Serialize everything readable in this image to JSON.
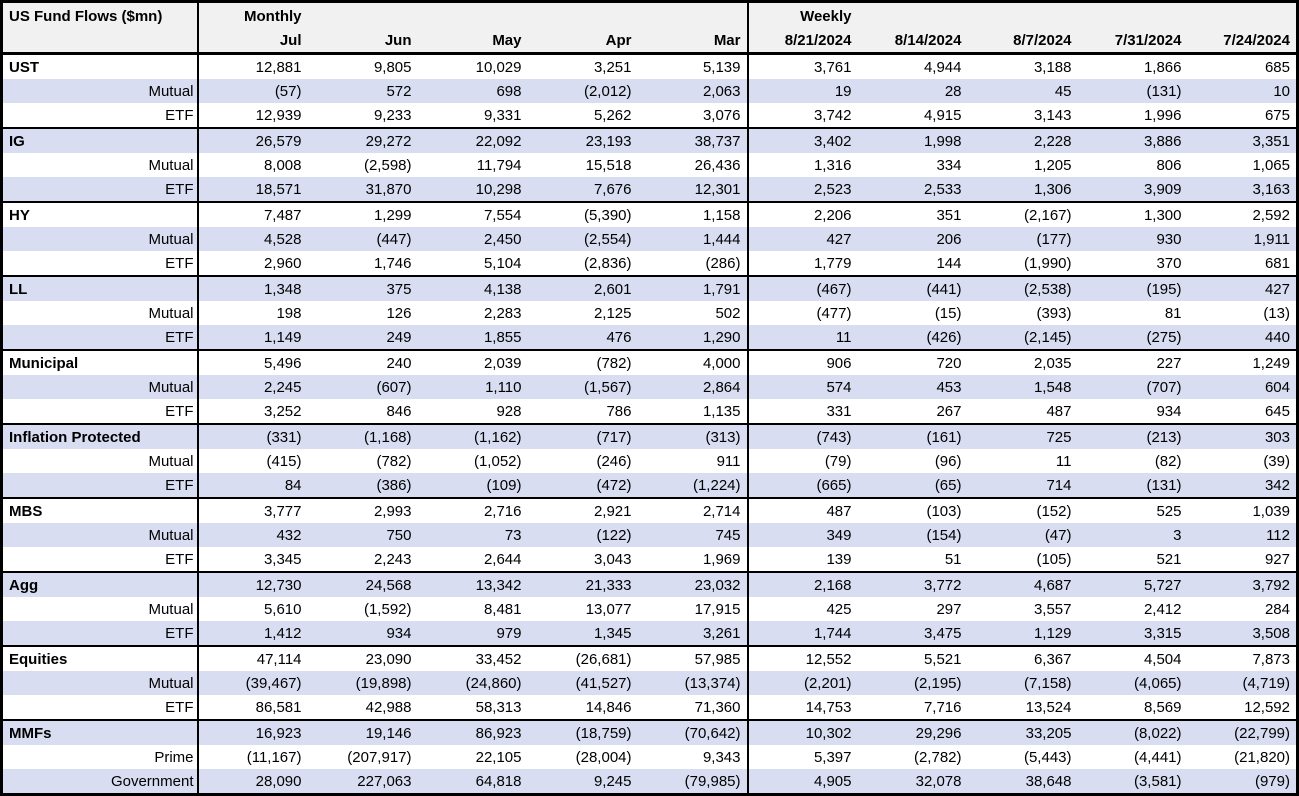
{
  "chart_data": {
    "type": "table",
    "title": "US Fund Flows ($mn)",
    "sections": [
      {
        "label": "Monthly",
        "columns": [
          "Jul",
          "Jun",
          "May",
          "Apr",
          "Mar"
        ]
      },
      {
        "label": "Weekly",
        "columns": [
          "8/21/2024",
          "8/14/2024",
          "8/7/2024",
          "7/31/2024",
          "7/24/2024"
        ]
      }
    ],
    "groups": [
      {
        "rows": [
          {
            "label": "UST",
            "monthly": [
              "12,881",
              "9,805",
              "10,029",
              "3,251",
              "5,139"
            ],
            "weekly": [
              "3,761",
              "4,944",
              "3,188",
              "1,866",
              "685"
            ]
          },
          {
            "label": "Mutual",
            "monthly": [
              "(57)",
              "572",
              "698",
              "(2,012)",
              "2,063"
            ],
            "weekly": [
              "19",
              "28",
              "45",
              "(131)",
              "10"
            ]
          },
          {
            "label": "ETF",
            "monthly": [
              "12,939",
              "9,233",
              "9,331",
              "5,262",
              "3,076"
            ],
            "weekly": [
              "3,742",
              "4,915",
              "3,143",
              "1,996",
              "675"
            ]
          }
        ]
      },
      {
        "rows": [
          {
            "label": "IG",
            "monthly": [
              "26,579",
              "29,272",
              "22,092",
              "23,193",
              "38,737"
            ],
            "weekly": [
              "3,402",
              "1,998",
              "2,228",
              "3,886",
              "3,351"
            ]
          },
          {
            "label": "Mutual",
            "monthly": [
              "8,008",
              "(2,598)",
              "11,794",
              "15,518",
              "26,436"
            ],
            "weekly": [
              "1,316",
              "334",
              "1,205",
              "806",
              "1,065"
            ]
          },
          {
            "label": "ETF",
            "monthly": [
              "18,571",
              "31,870",
              "10,298",
              "7,676",
              "12,301"
            ],
            "weekly": [
              "2,523",
              "2,533",
              "1,306",
              "3,909",
              "3,163"
            ]
          }
        ]
      },
      {
        "rows": [
          {
            "label": "HY",
            "monthly": [
              "7,487",
              "1,299",
              "7,554",
              "(5,390)",
              "1,158"
            ],
            "weekly": [
              "2,206",
              "351",
              "(2,167)",
              "1,300",
              "2,592"
            ]
          },
          {
            "label": "Mutual",
            "monthly": [
              "4,528",
              "(447)",
              "2,450",
              "(2,554)",
              "1,444"
            ],
            "weekly": [
              "427",
              "206",
              "(177)",
              "930",
              "1,911"
            ]
          },
          {
            "label": "ETF",
            "monthly": [
              "2,960",
              "1,746",
              "5,104",
              "(2,836)",
              "(286)"
            ],
            "weekly": [
              "1,779",
              "144",
              "(1,990)",
              "370",
              "681"
            ]
          }
        ]
      },
      {
        "rows": [
          {
            "label": "LL",
            "monthly": [
              "1,348",
              "375",
              "4,138",
              "2,601",
              "1,791"
            ],
            "weekly": [
              "(467)",
              "(441)",
              "(2,538)",
              "(195)",
              "427"
            ]
          },
          {
            "label": "Mutual",
            "monthly": [
              "198",
              "126",
              "2,283",
              "2,125",
              "502"
            ],
            "weekly": [
              "(477)",
              "(15)",
              "(393)",
              "81",
              "(13)"
            ]
          },
          {
            "label": "ETF",
            "monthly": [
              "1,149",
              "249",
              "1,855",
              "476",
              "1,290"
            ],
            "weekly": [
              "11",
              "(426)",
              "(2,145)",
              "(275)",
              "440"
            ]
          }
        ]
      },
      {
        "rows": [
          {
            "label": "Municipal",
            "monthly": [
              "5,496",
              "240",
              "2,039",
              "(782)",
              "4,000"
            ],
            "weekly": [
              "906",
              "720",
              "2,035",
              "227",
              "1,249"
            ]
          },
          {
            "label": "Mutual",
            "monthly": [
              "2,245",
              "(607)",
              "1,110",
              "(1,567)",
              "2,864"
            ],
            "weekly": [
              "574",
              "453",
              "1,548",
              "(707)",
              "604"
            ]
          },
          {
            "label": "ETF",
            "monthly": [
              "3,252",
              "846",
              "928",
              "786",
              "1,135"
            ],
            "weekly": [
              "331",
              "267",
              "487",
              "934",
              "645"
            ]
          }
        ]
      },
      {
        "rows": [
          {
            "label": "Inflation Protected",
            "monthly": [
              "(331)",
              "(1,168)",
              "(1,162)",
              "(717)",
              "(313)"
            ],
            "weekly": [
              "(743)",
              "(161)",
              "725",
              "(213)",
              "303"
            ]
          },
          {
            "label": "Mutual",
            "monthly": [
              "(415)",
              "(782)",
              "(1,052)",
              "(246)",
              "911"
            ],
            "weekly": [
              "(79)",
              "(96)",
              "11",
              "(82)",
              "(39)"
            ]
          },
          {
            "label": "ETF",
            "monthly": [
              "84",
              "(386)",
              "(109)",
              "(472)",
              "(1,224)"
            ],
            "weekly": [
              "(665)",
              "(65)",
              "714",
              "(131)",
              "342"
            ]
          }
        ]
      },
      {
        "rows": [
          {
            "label": "MBS",
            "monthly": [
              "3,777",
              "2,993",
              "2,716",
              "2,921",
              "2,714"
            ],
            "weekly": [
              "487",
              "(103)",
              "(152)",
              "525",
              "1,039"
            ]
          },
          {
            "label": "Mutual",
            "monthly": [
              "432",
              "750",
              "73",
              "(122)",
              "745"
            ],
            "weekly": [
              "349",
              "(154)",
              "(47)",
              "3",
              "112"
            ]
          },
          {
            "label": "ETF",
            "monthly": [
              "3,345",
              "2,243",
              "2,644",
              "3,043",
              "1,969"
            ],
            "weekly": [
              "139",
              "51",
              "(105)",
              "521",
              "927"
            ]
          }
        ]
      },
      {
        "rows": [
          {
            "label": "Agg",
            "monthly": [
              "12,730",
              "24,568",
              "13,342",
              "21,333",
              "23,032"
            ],
            "weekly": [
              "2,168",
              "3,772",
              "4,687",
              "5,727",
              "3,792"
            ]
          },
          {
            "label": "Mutual",
            "monthly": [
              "5,610",
              "(1,592)",
              "8,481",
              "13,077",
              "17,915"
            ],
            "weekly": [
              "425",
              "297",
              "3,557",
              "2,412",
              "284"
            ]
          },
          {
            "label": "ETF",
            "monthly": [
              "1,412",
              "934",
              "979",
              "1,345",
              "3,261"
            ],
            "weekly": [
              "1,744",
              "3,475",
              "1,129",
              "3,315",
              "3,508"
            ]
          }
        ]
      },
      {
        "rows": [
          {
            "label": "Equities",
            "monthly": [
              "47,114",
              "23,090",
              "33,452",
              "(26,681)",
              "57,985"
            ],
            "weekly": [
              "12,552",
              "5,521",
              "6,367",
              "4,504",
              "7,873"
            ]
          },
          {
            "label": "Mutual",
            "monthly": [
              "(39,467)",
              "(19,898)",
              "(24,860)",
              "(41,527)",
              "(13,374)"
            ],
            "weekly": [
              "(2,201)",
              "(2,195)",
              "(7,158)",
              "(4,065)",
              "(4,719)"
            ]
          },
          {
            "label": "ETF",
            "monthly": [
              "86,581",
              "42,988",
              "58,313",
              "14,846",
              "71,360"
            ],
            "weekly": [
              "14,753",
              "7,716",
              "13,524",
              "8,569",
              "12,592"
            ]
          }
        ]
      },
      {
        "rows": [
          {
            "label": "MMFs",
            "monthly": [
              "16,923",
              "19,146",
              "86,923",
              "(18,759)",
              "(70,642)"
            ],
            "weekly": [
              "10,302",
              "29,296",
              "33,205",
              "(8,022)",
              "(22,799)"
            ]
          },
          {
            "label": "Prime",
            "monthly": [
              "(11,167)",
              "(207,917)",
              "22,105",
              "(28,004)",
              "9,343"
            ],
            "weekly": [
              "5,397",
              "(2,782)",
              "(5,443)",
              "(4,441)",
              "(21,820)"
            ]
          },
          {
            "label": "Government",
            "monthly": [
              "28,090",
              "227,063",
              "64,818",
              "9,245",
              "(79,985)"
            ],
            "weekly": [
              "4,905",
              "32,078",
              "38,648",
              "(3,581)",
              "(979)"
            ]
          }
        ]
      }
    ],
    "style": {
      "stripe_color": "#D8DDF2",
      "header_bg": "#F1F1F1",
      "border_color": "#000000",
      "text_color": "#000000"
    }
  }
}
